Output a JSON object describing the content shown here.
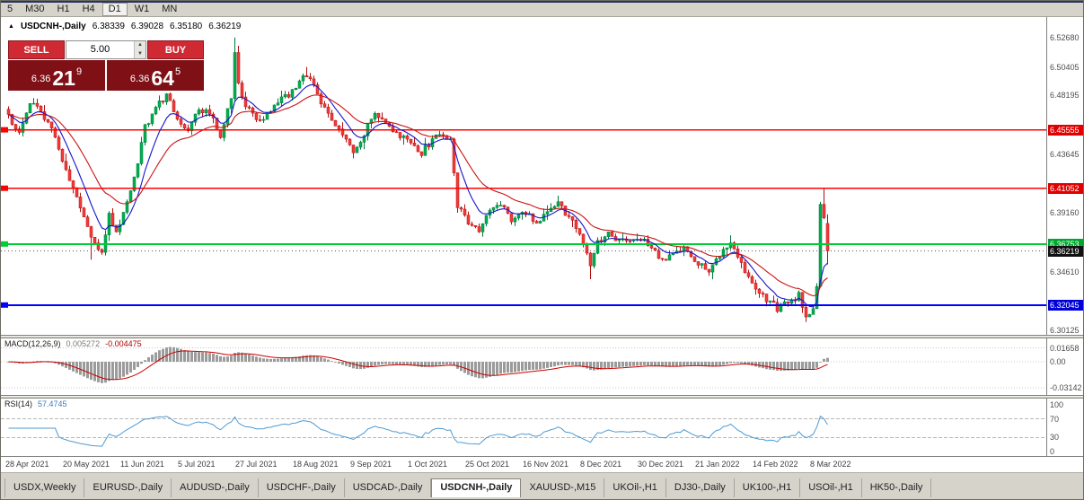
{
  "colors": {
    "candle_up": "#00b050",
    "candle_up_edge": "#007a38",
    "candle_down": "#f43b3b",
    "candle_down_edge": "#b40f0f",
    "ma_fast": "#1414cc",
    "ma_slow": "#cc1414",
    "macd_hist": "#9b9b9b",
    "macd_signal": "#cc0000",
    "rsi_line": "#4f9ad2",
    "hline_red": "#ff0000",
    "hline_green": "#00cc33",
    "hline_blue": "#0000ff",
    "sell_buy_button": "#cf2a33",
    "price_display_bg": "#7e1016",
    "toolbar_bg": "#d6d3cb"
  },
  "toolbar": {
    "timeframes": [
      {
        "label": "5",
        "active": false
      },
      {
        "label": "M30",
        "active": false
      },
      {
        "label": "H1",
        "active": false
      },
      {
        "label": "H4",
        "active": false
      },
      {
        "label": "D1",
        "active": true
      },
      {
        "label": "W1",
        "active": false
      },
      {
        "label": "MN",
        "active": false
      }
    ]
  },
  "chart": {
    "title": {
      "arrow": "▲",
      "symbol": "USDCNH-,Daily",
      "open": "6.38339",
      "high": "6.39028",
      "low": "6.35180",
      "close": "6.36219"
    },
    "price_axis": {
      "ticks": [
        {
          "label": "6.52680",
          "value": 6.5268
        },
        {
          "label": "6.50405",
          "value": 6.50405
        },
        {
          "label": "6.48195",
          "value": 6.48195
        },
        {
          "label": "6.43645",
          "value": 6.43645
        },
        {
          "label": "6.39160",
          "value": 6.3916
        },
        {
          "label": "6.34610",
          "value": 6.3461
        },
        {
          "label": "6.30125",
          "value": 6.30125
        }
      ],
      "tags": [
        {
          "label": "6.45555",
          "value": 6.45555,
          "bg": "#e00000"
        },
        {
          "label": "6.41052",
          "value": 6.41052,
          "bg": "#e00000"
        },
        {
          "label": "6.36753",
          "value": 6.36753,
          "bg": "#00a830"
        },
        {
          "label": "6.36219",
          "value": 6.36219,
          "bg": "#111111"
        },
        {
          "label": "6.32045",
          "value": 6.32045,
          "bg": "#0000d8"
        }
      ]
    }
  },
  "trade": {
    "sell_label": "SELL",
    "buy_label": "BUY",
    "volume": "5.00",
    "up_arrow": "▲",
    "down_arrow": "▼",
    "sell": {
      "prefix": "6.36",
      "big": "21",
      "sup": "9"
    },
    "buy": {
      "prefix": "6.36",
      "big": "64",
      "sup": "5"
    }
  },
  "macd": {
    "label": "MACD(12,26,9)",
    "value_main": "0.005272",
    "value_signal": "-0.004475",
    "axis": [
      {
        "label": "0.01658",
        "value": 0.01658
      },
      {
        "label": "0.00",
        "value": 0
      },
      {
        "label": "-0.03142",
        "value": -0.03142
      }
    ],
    "ylim": [
      -0.038,
      0.026
    ]
  },
  "rsi": {
    "label": "RSI(14)",
    "value": "57.4745",
    "axis": [
      {
        "label": "100",
        "value": 100
      },
      {
        "label": "70",
        "value": 70
      },
      {
        "label": "30",
        "value": 30
      },
      {
        "label": "0",
        "value": 0
      }
    ],
    "levels": [
      70,
      30
    ]
  },
  "date_axis": {
    "labels": [
      "28 Apr 2021",
      "20 May 2021",
      "11 Jun 2021",
      "5 Jul 2021",
      "27 Jul 2021",
      "18 Aug 2021",
      "9 Sep 2021",
      "1 Oct 2021",
      "25 Oct 2021",
      "16 Nov 2021",
      "8 Dec 2021",
      "30 Dec 2021",
      "21 Jan 2022",
      "14 Feb 2022",
      "8 Mar 2022"
    ]
  },
  "tabs": [
    {
      "label": "USDX,Weekly",
      "active": false
    },
    {
      "label": "EURUSD-,Daily",
      "active": false
    },
    {
      "label": "AUDUSD-,Daily",
      "active": false
    },
    {
      "label": "USDCHF-,Daily",
      "active": false
    },
    {
      "label": "USDCAD-,Daily",
      "active": false
    },
    {
      "label": "USDCNH-,Daily",
      "active": true
    },
    {
      "label": "XAUUSD-,M15",
      "active": false
    },
    {
      "label": "UKOil-,H1",
      "active": false
    },
    {
      "label": "DJ30-,Daily",
      "active": false
    },
    {
      "label": "UK100-,H1",
      "active": false
    },
    {
      "label": "USOil-,H1",
      "active": false
    },
    {
      "label": "HK50-,Daily",
      "active": false
    }
  ],
  "chart_data": {
    "type": "candlestick",
    "symbol": "USDCNH-",
    "timeframe": "Daily",
    "title": "USDCNH-,Daily",
    "ylim": [
      6.2975,
      6.5425
    ],
    "num_candles": 229,
    "current_price": 6.36219,
    "last_candle": {
      "open": 6.38339,
      "high": 6.39028,
      "low": 6.3518,
      "close": 6.36219
    },
    "hlines": [
      {
        "value": 6.45555,
        "color": "#ff0000",
        "width": 1.4
      },
      {
        "value": 6.41052,
        "color": "#ff0000",
        "width": 1.4
      },
      {
        "value": 6.36753,
        "color": "#00cc33",
        "width": 2
      },
      {
        "value": 6.32045,
        "color": "#0000ff",
        "width": 2
      }
    ],
    "moving_averages": [
      {
        "type": "ema",
        "period": 8,
        "color": "#1414cc"
      },
      {
        "type": "ema",
        "period": 21,
        "color": "#cc1414"
      }
    ],
    "macd_params": {
      "fast": 12,
      "slow": 26,
      "signal": 9,
      "current_main": 0.005272,
      "current_signal": -0.004475
    },
    "rsi_params": {
      "period": 14,
      "current": 57.4745
    },
    "close_anchors": [
      [
        0,
        6.465
      ],
      [
        3,
        6.452
      ],
      [
        6,
        6.478
      ],
      [
        9,
        6.468
      ],
      [
        12,
        6.455
      ],
      [
        16,
        6.425
      ],
      [
        19,
        6.402
      ],
      [
        23,
        6.372
      ],
      [
        26,
        6.362
      ],
      [
        28,
        6.39
      ],
      [
        30,
        6.378
      ],
      [
        33,
        6.398
      ],
      [
        36,
        6.432
      ],
      [
        38,
        6.458
      ],
      [
        41,
        6.472
      ],
      [
        44,
        6.483
      ],
      [
        47,
        6.462
      ],
      [
        50,
        6.456
      ],
      [
        53,
        6.472
      ],
      [
        56,
        6.468
      ],
      [
        59,
        6.452
      ],
      [
        62,
        6.48
      ],
      [
        63,
        6.514
      ],
      [
        64,
        6.492
      ],
      [
        66,
        6.474
      ],
      [
        69,
        6.462
      ],
      [
        72,
        6.468
      ],
      [
        75,
        6.478
      ],
      [
        78,
        6.482
      ],
      [
        81,
        6.492
      ],
      [
        83,
        6.498
      ],
      [
        87,
        6.478
      ],
      [
        90,
        6.462
      ],
      [
        93,
        6.45
      ],
      [
        96,
        6.438
      ],
      [
        99,
        6.452
      ],
      [
        102,
        6.47
      ],
      [
        105,
        6.462
      ],
      [
        108,
        6.452
      ],
      [
        112,
        6.445
      ],
      [
        115,
        6.438
      ],
      [
        118,
        6.448
      ],
      [
        121,
        6.452
      ],
      [
        123,
        6.448
      ],
      [
        125,
        6.398
      ],
      [
        128,
        6.385
      ],
      [
        131,
        6.378
      ],
      [
        134,
        6.392
      ],
      [
        137,
        6.398
      ],
      [
        140,
        6.385
      ],
      [
        144,
        6.392
      ],
      [
        147,
        6.382
      ],
      [
        150,
        6.395
      ],
      [
        153,
        6.4
      ],
      [
        156,
        6.388
      ],
      [
        159,
        6.375
      ],
      [
        162,
        6.352
      ],
      [
        164,
        6.368
      ],
      [
        167,
        6.376
      ],
      [
        170,
        6.37
      ],
      [
        173,
        6.368
      ],
      [
        176,
        6.372
      ],
      [
        179,
        6.366
      ],
      [
        182,
        6.355
      ],
      [
        185,
        6.358
      ],
      [
        188,
        6.364
      ],
      [
        192,
        6.353
      ],
      [
        195,
        6.348
      ],
      [
        198,
        6.36
      ],
      [
        201,
        6.368
      ],
      [
        204,
        6.352
      ],
      [
        208,
        6.335
      ],
      [
        211,
        6.325
      ],
      [
        214,
        6.318
      ],
      [
        217,
        6.322
      ],
      [
        220,
        6.328
      ],
      [
        222,
        6.312
      ],
      [
        224,
        6.318
      ],
      [
        225,
        6.335
      ],
      [
        226,
        6.398
      ],
      [
        227,
        6.388
      ],
      [
        228,
        6.36219
      ]
    ],
    "spikes": [
      {
        "i": 63,
        "high": 6.5268
      },
      {
        "i": 83,
        "high": 6.504
      },
      {
        "i": 23,
        "low": 6.3555
      },
      {
        "i": 162,
        "low": 6.3404
      },
      {
        "i": 222,
        "low": 6.3075
      },
      {
        "i": 227,
        "high": 6.41052
      }
    ]
  }
}
